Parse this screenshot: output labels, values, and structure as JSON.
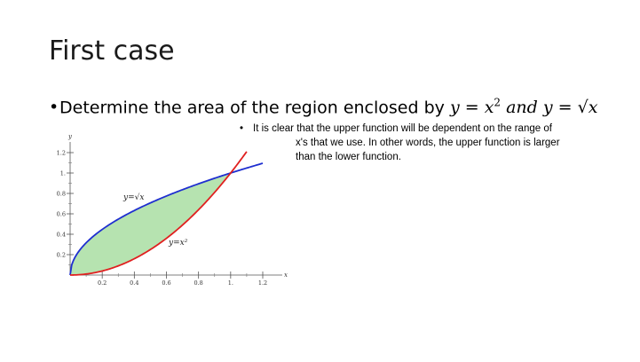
{
  "slide": {
    "title": "First case",
    "bullet_text": "Determine the area of the region enclosed by",
    "eq1_lhs": "y",
    "eq1_rhs": "x",
    "eq1_exp": "2",
    "eq_sep": "and",
    "eq2_lhs": "y",
    "eq2_rhs": "√x",
    "note": {
      "line1": "It is clear that the upper function will be dependent on the range of",
      "line2": "x's that we use. In other words, the upper function is larger",
      "line3": "than the lower function."
    }
  },
  "chart_data": {
    "type": "area",
    "x_axis": {
      "label": "x",
      "ticks": [
        "0.2",
        "0.4",
        "0.6",
        "0.8",
        "1.",
        "1.2"
      ],
      "tick_values": [
        0.2,
        0.4,
        0.6,
        0.8,
        1.0,
        1.2
      ],
      "range": [
        0,
        1.2
      ]
    },
    "y_axis": {
      "label": "y",
      "ticks": [
        "0.2",
        "0.4",
        "0.6",
        "0.8",
        "1.",
        "1.2"
      ],
      "tick_values": [
        0.2,
        0.4,
        0.6,
        0.8,
        1.0,
        1.2
      ],
      "range": [
        0,
        1.25
      ]
    },
    "series": [
      {
        "name": "y=√x",
        "function": "sqrt",
        "x_range": [
          0,
          1.2
        ],
        "color": "#1f2fd0"
      },
      {
        "name": "y=x²",
        "function": "square",
        "x_range": [
          0,
          1.1
        ],
        "color": "#e02020"
      }
    ],
    "shaded_region": {
      "between": [
        "y=√x",
        "y=x²"
      ],
      "x_range": [
        0,
        1
      ],
      "color": "#b6e3b0"
    },
    "grid": false
  }
}
